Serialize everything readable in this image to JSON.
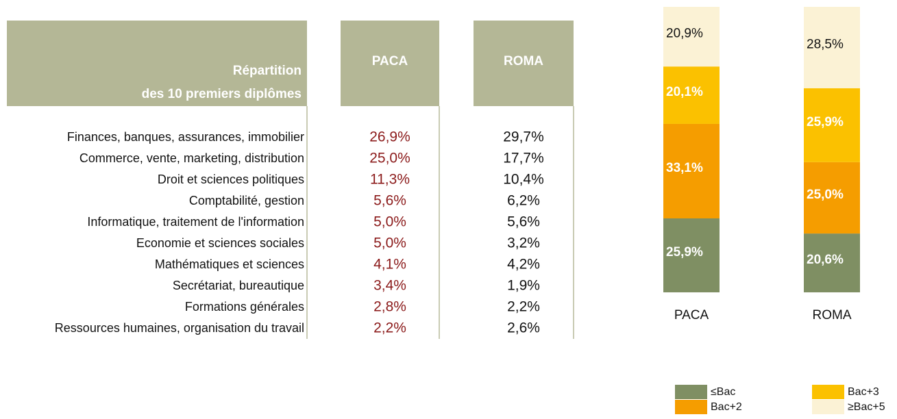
{
  "table": {
    "header": {
      "title_lines": [
        "Répartition",
        "des 10 premiers diplômes"
      ],
      "columns": [
        "PACA",
        "ROMA"
      ]
    },
    "rows": [
      [
        "Finances, banques, assurances, immobilier",
        "26,9%",
        "29,7%"
      ],
      [
        "Commerce, vente, marketing, distribution",
        "25,0%",
        "17,7%"
      ],
      [
        "Droit et sciences politiques",
        "11,3%",
        "10,4%"
      ],
      [
        "Comptabilité, gestion",
        "5,6%",
        "6,2%"
      ],
      [
        "Informatique, traitement de l'information",
        "5,0%",
        "5,6%"
      ],
      [
        "Economie et sciences sociales",
        "5,0%",
        "3,2%"
      ],
      [
        "Mathématiques et sciences",
        "4,1%",
        "4,2%"
      ],
      [
        "Secrétariat, bureautique",
        "3,4%",
        "1,9%"
      ],
      [
        "Formations générales",
        "2,8%",
        "2,2%"
      ],
      [
        "Ressources humaines, organisation du travail",
        "2,2%",
        "2,6%"
      ]
    ]
  },
  "chart_data": {
    "type": "stacked_bar",
    "categories": [
      "PACA",
      "ROMA"
    ],
    "ylim": [
      0,
      100
    ],
    "series": [
      {
        "name": "≤Bac",
        "color": "#7f8f63",
        "label_color": "#ffffff",
        "values": [
          25.9,
          20.6
        ],
        "value_labels": [
          "25,9%",
          "20,6%"
        ]
      },
      {
        "name": "Bac+2",
        "color": "#f59d00",
        "label_color": "#ffffff",
        "values": [
          33.1,
          25.0
        ],
        "value_labels": [
          "33,1%",
          "25,0%"
        ]
      },
      {
        "name": "Bac+3",
        "color": "#fbc100",
        "label_color": "#ffffff",
        "values": [
          20.1,
          25.9
        ],
        "value_labels": [
          "20,1%",
          "25,9%"
        ]
      },
      {
        "name": "≥Bac+5",
        "color": "#fbf2d5",
        "label_color": "#111111",
        "values": [
          20.9,
          28.5
        ],
        "value_labels": [
          "20,9%",
          "28,5%"
        ]
      }
    ]
  }
}
